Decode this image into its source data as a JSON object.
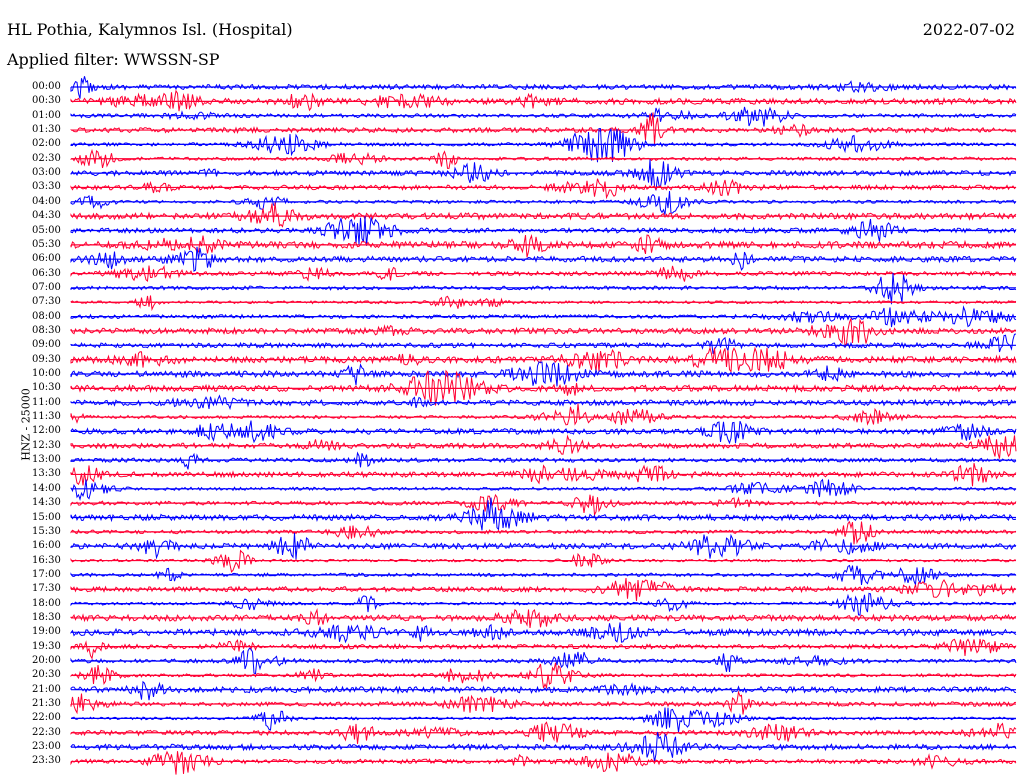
{
  "header": {
    "station": "HL Pothia, Kalymnos Isl. (Hospital)",
    "date": "2022-07-02",
    "filter": "Applied filter: WWSSN-SP"
  },
  "axis_label": "HNZ - 25000",
  "colors": {
    "odd": "#0000ff",
    "even": "#ff0033",
    "text": "#000000"
  },
  "times": [
    "00:00",
    "00:30",
    "01:00",
    "01:30",
    "02:00",
    "02:30",
    "03:00",
    "03:30",
    "04:00",
    "04:30",
    "05:00",
    "05:30",
    "06:00",
    "06:30",
    "07:00",
    "07:30",
    "08:00",
    "08:30",
    "09:00",
    "09:30",
    "10:00",
    "10:30",
    "11:00",
    "11:30",
    "12:00",
    "12:30",
    "13:00",
    "13:30",
    "14:00",
    "14:30",
    "15:00",
    "15:30",
    "16:00",
    "16:30",
    "17:00",
    "17:30",
    "18:00",
    "18:30",
    "19:00",
    "19:30",
    "20:00",
    "20:30",
    "21:00",
    "21:30",
    "22:00",
    "22:30",
    "23:00",
    "23:30"
  ]
}
